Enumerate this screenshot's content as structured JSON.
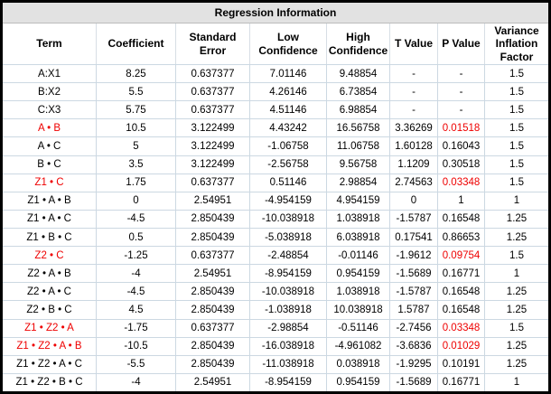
{
  "title": "Regression Information",
  "colors": {
    "significant_red": "#ee0000",
    "title_bar_bg": "#e2e2e2",
    "grid_line": "#ccd8e2",
    "outer_border": "#000000"
  },
  "columns": [
    "Term",
    "Coefficient",
    "Standard Error",
    "Low Confidence",
    "High Confidence",
    "T Value",
    "P Value",
    "Variance Inflation Factor"
  ],
  "rows": [
    {
      "term": "A:X1",
      "coefficient": "8.25",
      "std_error": "0.637377",
      "low_confidence": "7.01146",
      "high_confidence": "9.48854",
      "t_value": "-",
      "p_value": "-",
      "vif": "1.5",
      "term_red": false,
      "p_red": false
    },
    {
      "term": "B:X2",
      "coefficient": "5.5",
      "std_error": "0.637377",
      "low_confidence": "4.26146",
      "high_confidence": "6.73854",
      "t_value": "-",
      "p_value": "-",
      "vif": "1.5",
      "term_red": false,
      "p_red": false
    },
    {
      "term": "C:X3",
      "coefficient": "5.75",
      "std_error": "0.637377",
      "low_confidence": "4.51146",
      "high_confidence": "6.98854",
      "t_value": "-",
      "p_value": "-",
      "vif": "1.5",
      "term_red": false,
      "p_red": false
    },
    {
      "term": "A • B",
      "coefficient": "10.5",
      "std_error": "3.122499",
      "low_confidence": "4.43242",
      "high_confidence": "16.56758",
      "t_value": "3.36269",
      "p_value": "0.01518",
      "vif": "1.5",
      "term_red": true,
      "p_red": true
    },
    {
      "term": "A • C",
      "coefficient": "5",
      "std_error": "3.122499",
      "low_confidence": "-1.06758",
      "high_confidence": "11.06758",
      "t_value": "1.60128",
      "p_value": "0.16043",
      "vif": "1.5",
      "term_red": false,
      "p_red": false
    },
    {
      "term": "B • C",
      "coefficient": "3.5",
      "std_error": "3.122499",
      "low_confidence": "-2.56758",
      "high_confidence": "9.56758",
      "t_value": "1.1209",
      "p_value": "0.30518",
      "vif": "1.5",
      "term_red": false,
      "p_red": false
    },
    {
      "term": "Z1 • C",
      "coefficient": "1.75",
      "std_error": "0.637377",
      "low_confidence": "0.51146",
      "high_confidence": "2.98854",
      "t_value": "2.74563",
      "p_value": "0.03348",
      "vif": "1.5",
      "term_red": true,
      "p_red": true
    },
    {
      "term": "Z1 • A • B",
      "coefficient": "0",
      "std_error": "2.54951",
      "low_confidence": "-4.954159",
      "high_confidence": "4.954159",
      "t_value": "0",
      "p_value": "1",
      "vif": "1",
      "term_red": false,
      "p_red": false
    },
    {
      "term": "Z1 • A • C",
      "coefficient": "-4.5",
      "std_error": "2.850439",
      "low_confidence": "-10.038918",
      "high_confidence": "1.038918",
      "t_value": "-1.5787",
      "p_value": "0.16548",
      "vif": "1.25",
      "term_red": false,
      "p_red": false
    },
    {
      "term": "Z1 • B • C",
      "coefficient": "0.5",
      "std_error": "2.850439",
      "low_confidence": "-5.038918",
      "high_confidence": "6.038918",
      "t_value": "0.17541",
      "p_value": "0.86653",
      "vif": "1.25",
      "term_red": false,
      "p_red": false
    },
    {
      "term": "Z2 • C",
      "coefficient": "-1.25",
      "std_error": "0.637377",
      "low_confidence": "-2.48854",
      "high_confidence": "-0.01146",
      "t_value": "-1.9612",
      "p_value": "0.09754",
      "vif": "1.5",
      "term_red": true,
      "p_red": true
    },
    {
      "term": "Z2 • A • B",
      "coefficient": "-4",
      "std_error": "2.54951",
      "low_confidence": "-8.954159",
      "high_confidence": "0.954159",
      "t_value": "-1.5689",
      "p_value": "0.16771",
      "vif": "1",
      "term_red": false,
      "p_red": false
    },
    {
      "term": "Z2 • A • C",
      "coefficient": "-4.5",
      "std_error": "2.850439",
      "low_confidence": "-10.038918",
      "high_confidence": "1.038918",
      "t_value": "-1.5787",
      "p_value": "0.16548",
      "vif": "1.25",
      "term_red": false,
      "p_red": false
    },
    {
      "term": "Z2 • B • C",
      "coefficient": "4.5",
      "std_error": "2.850439",
      "low_confidence": "-1.038918",
      "high_confidence": "10.038918",
      "t_value": "1.5787",
      "p_value": "0.16548",
      "vif": "1.25",
      "term_red": false,
      "p_red": false
    },
    {
      "term": "Z1 • Z2 • A",
      "coefficient": "-1.75",
      "std_error": "0.637377",
      "low_confidence": "-2.98854",
      "high_confidence": "-0.51146",
      "t_value": "-2.7456",
      "p_value": "0.03348",
      "vif": "1.5",
      "term_red": true,
      "p_red": true
    },
    {
      "term": "Z1 • Z2 • A • B",
      "coefficient": "-10.5",
      "std_error": "2.850439",
      "low_confidence": "-16.038918",
      "high_confidence": "-4.961082",
      "t_value": "-3.6836",
      "p_value": "0.01029",
      "vif": "1.25",
      "term_red": true,
      "p_red": true
    },
    {
      "term": "Z1 • Z2 • A • C",
      "coefficient": "-5.5",
      "std_error": "2.850439",
      "low_confidence": "-11.038918",
      "high_confidence": "0.038918",
      "t_value": "-1.9295",
      "p_value": "0.10191",
      "vif": "1.25",
      "term_red": false,
      "p_red": false
    },
    {
      "term": "Z1 • Z2 • B • C",
      "coefficient": "-4",
      "std_error": "2.54951",
      "low_confidence": "-8.954159",
      "high_confidence": "0.954159",
      "t_value": "-1.5689",
      "p_value": "0.16771",
      "vif": "1",
      "term_red": false,
      "p_red": false
    }
  ]
}
